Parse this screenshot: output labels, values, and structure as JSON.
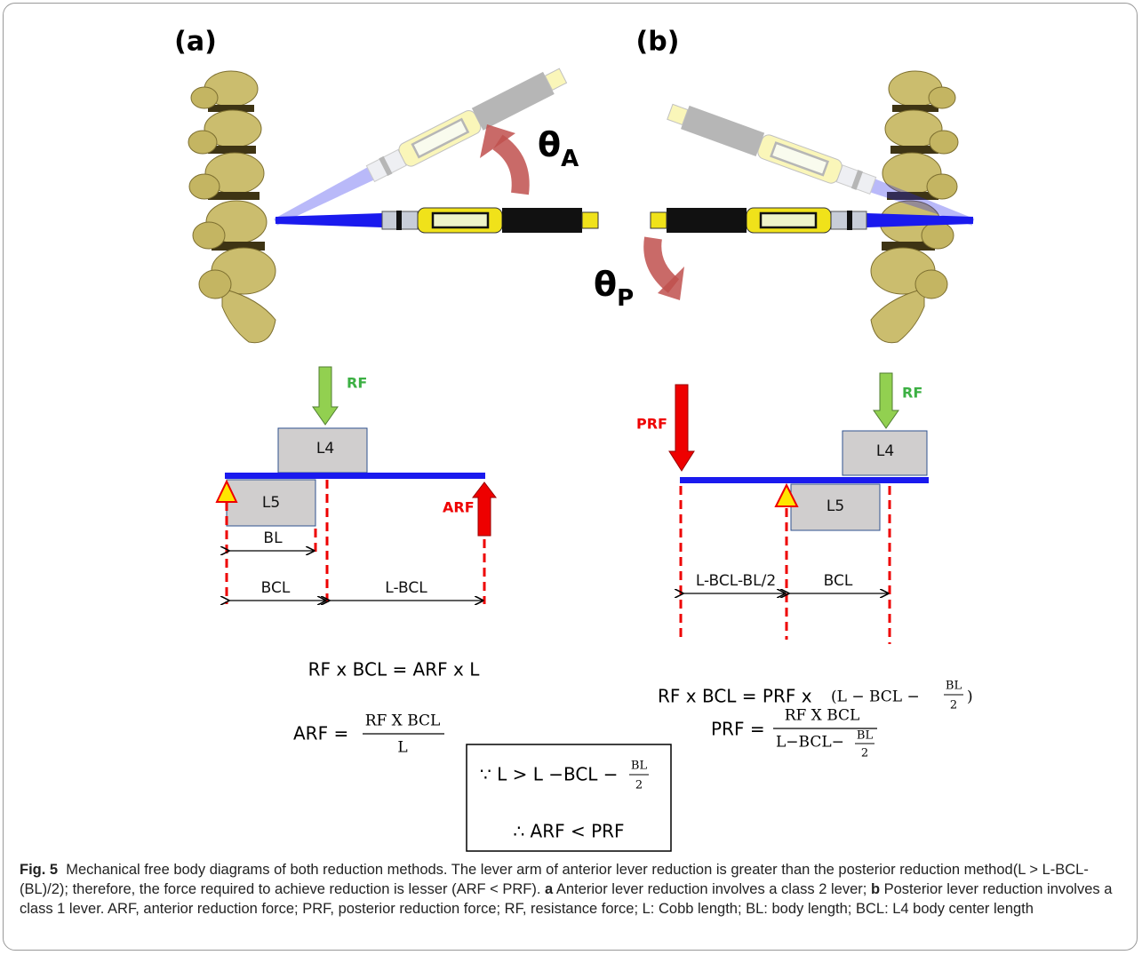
{
  "figure": {
    "panels": [
      {
        "label": "(a)",
        "angle": {
          "symbol": "θ",
          "subscript": "A"
        },
        "lever": {
          "top_force": "RF",
          "upper_body": "L4",
          "lower_body": "L5",
          "end_force": "ARF",
          "dimensions": [
            "BL",
            "BCL",
            "L-BCL"
          ]
        },
        "equation": "RF x BCL = ARF x L",
        "result": {
          "lhs": "ARF =",
          "numerator": "RF X BCL",
          "denominator": "L"
        }
      },
      {
        "label": "(b)",
        "angle": {
          "symbol": "θ",
          "subscript": "P"
        },
        "lever": {
          "top_force": "RF",
          "upper_body": "L4",
          "lower_body": "L5",
          "end_force": "PRF",
          "dimensions": [
            "L-BCL-BL/2",
            "BCL"
          ]
        },
        "equation": {
          "text": "RF x BCL = PRF x",
          "open": "(L − BCL −",
          "numerator": "BL",
          "denominator": "2",
          "close": ")"
        },
        "result": {
          "lhs": "PRF =",
          "numerator": "RF X BCL",
          "denominator": {
            "text": "L−BCL−",
            "numerator": "BL",
            "denominator": "2"
          }
        }
      }
    ],
    "box": {
      "because": {
        "text": "∵ L > L −BCL −",
        "numerator": "BL",
        "denominator": "2"
      },
      "therefore": "∴ ARF < PRF"
    },
    "caption": {
      "label": "Fig. 5",
      "text1": "Mechanical free body diagrams of both reduction methods. The lever arm of anterior lever reduction is greater than the posterior reduction method(L > L-BCL-(BL)/2); therefore, the force required to achieve reduction is lesser (ARF < PRF).",
      "a": "a",
      "text2": "Anterior lever reduction involves a class 2 lever;",
      "b": "b",
      "text3": "Posterior lever reduction involves a class 1 lever. ARF, anterior reduction force; PRF, posterior reduction force; RF, resistance force; L: Cobb length; BL: body length; BCL: L4 body center length"
    }
  }
}
